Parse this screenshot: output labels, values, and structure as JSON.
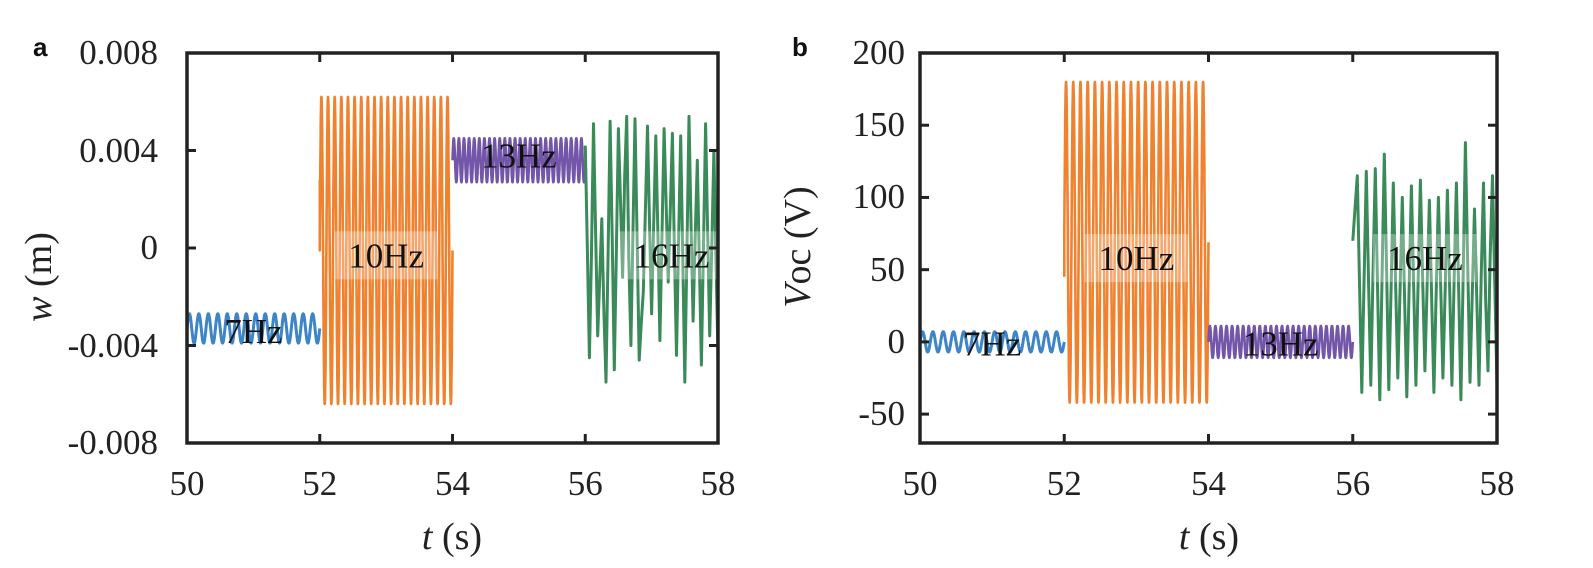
{
  "chart_data": [
    {
      "panel": "a",
      "type": "line",
      "title": "",
      "xlabel_var": "t",
      "xlabel_unit": " (s)",
      "ylabel_var": "w",
      "ylabel_unit": " (m)",
      "xlim": [
        50,
        58
      ],
      "ylim": [
        -0.008,
        0.008
      ],
      "xticks": [
        50,
        52,
        54,
        56,
        58
      ],
      "yticks": [
        -0.008,
        -0.004,
        0,
        0.004,
        0.008
      ],
      "ytick_labels": [
        "-0.008",
        "-0.004",
        "0",
        "0.004",
        "0.008"
      ],
      "xtick_labels": [
        "50",
        "52",
        "54",
        "56",
        "58"
      ],
      "grid": false,
      "series": [
        {
          "name": "7Hz",
          "color": "#3d85c6",
          "x_range": [
            50,
            52
          ],
          "center": -0.0033,
          "amplitude": 0.0006,
          "freq_hz": 7,
          "label_x": 51.0,
          "label_y": -0.0034,
          "style": "sine"
        },
        {
          "name": "10Hz",
          "color": "#f0812f",
          "x_range": [
            52,
            54
          ],
          "center": -0.0001,
          "amplitude": 0.0063,
          "freq_hz": 10,
          "label_x": 53.0,
          "label_y": -0.0003,
          "style": "dense",
          "start_value": 0.0028
        },
        {
          "name": "13Hz",
          "color": "#7356a8",
          "x_range": [
            54,
            56
          ],
          "center": 0.0036,
          "amplitude": 0.0009,
          "freq_hz": 13,
          "label_x": 55.0,
          "label_y": 0.0038,
          "style": "dense"
        },
        {
          "name": "16Hz",
          "color": "#3b8a5a",
          "x_range": [
            56,
            58
          ],
          "min": -0.0055,
          "max": 0.0055,
          "freq_hz": 16,
          "label_x": 57.3,
          "label_y": -0.0003,
          "style": "chaotic",
          "samples": [
            0.0042,
            -0.0045,
            0.0051,
            -0.0036,
            0.0012,
            -0.0055,
            0.0052,
            -0.005,
            0.0049,
            -0.0012,
            0.0054,
            -0.004,
            0.0053,
            -0.0046,
            -0.0018,
            0.005,
            -0.0027,
            0.0046,
            -0.0038,
            0.0049,
            -0.0014,
            0.0047,
            -0.0044,
            0.0046,
            -0.0055,
            0.0054,
            -0.003,
            0.0036,
            -0.0048,
            0.0051,
            -0.0036,
            0.004,
            -0.0045
          ]
        }
      ]
    },
    {
      "panel": "b",
      "type": "line",
      "title": "",
      "xlabel_var": "t",
      "xlabel_unit": " (s)",
      "ylabel_var": "V",
      "ylabel_sub": "oc",
      "ylabel_unit": " (V)",
      "xlim": [
        50,
        58
      ],
      "ylim": [
        -70,
        200
      ],
      "xticks": [
        50,
        52,
        54,
        56,
        58
      ],
      "yticks": [
        -50,
        0,
        50,
        100,
        150,
        200
      ],
      "ytick_labels": [
        "-50",
        "0",
        "50",
        "100",
        "150",
        "200"
      ],
      "xtick_labels": [
        "50",
        "52",
        "54",
        "56",
        "58"
      ],
      "grid": false,
      "series": [
        {
          "name": "7Hz",
          "color": "#3d85c6",
          "x_range": [
            50,
            52
          ],
          "center": 0,
          "amplitude": 7,
          "freq_hz": 7,
          "label_x": 51.0,
          "label_y": -1,
          "style": "sine"
        },
        {
          "name": "10Hz",
          "color": "#f0812f",
          "x_range": [
            52,
            54
          ],
          "center": 69,
          "amplitude": 111,
          "freq_hz": 10,
          "label_x": 53.0,
          "label_y": 58,
          "style": "dense",
          "start_value": 45
        },
        {
          "name": "13Hz",
          "color": "#7356a8",
          "x_range": [
            54,
            56
          ],
          "center": 0,
          "amplitude": 11,
          "freq_hz": 13,
          "label_x": 55.0,
          "label_y": -1,
          "style": "dense"
        },
        {
          "name": "16Hz",
          "color": "#3b8a5a",
          "x_range": [
            56,
            58
          ],
          "min": -40,
          "max": 138,
          "freq_hz": 16,
          "label_x": 57.0,
          "label_y": 58,
          "style": "chaotic",
          "samples": [
            70,
            115,
            -35,
            118,
            -30,
            120,
            -40,
            130,
            -33,
            110,
            -25,
            100,
            -38,
            108,
            -30,
            112,
            -20,
            98,
            -35,
            100,
            -25,
            105,
            -30,
            110,
            -40,
            138,
            -28,
            92,
            -30,
            110,
            -20,
            115,
            -30
          ]
        }
      ]
    }
  ],
  "panels": {
    "a": {
      "letter": "a"
    },
    "b": {
      "letter": "b"
    }
  }
}
